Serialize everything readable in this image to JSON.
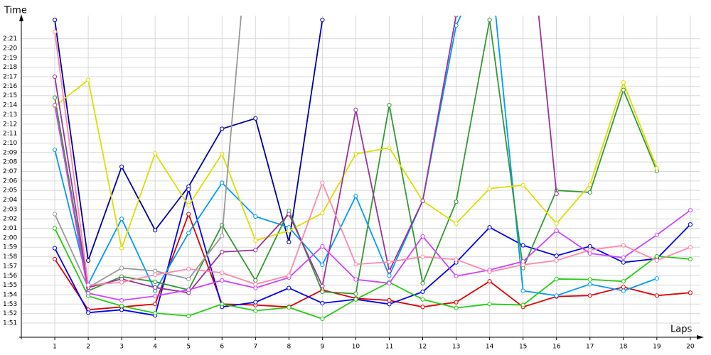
{
  "chart_data": {
    "type": "line",
    "y_label": "Time",
    "x_label": "Laps",
    "x": [
      1,
      2,
      3,
      4,
      5,
      6,
      7,
      8,
      9,
      10,
      11,
      12,
      13,
      14,
      15,
      16,
      17,
      18,
      19,
      20
    ],
    "xlim": [
      0,
      20.3
    ],
    "xticks": [
      1,
      2,
      3,
      4,
      5,
      6,
      7,
      8,
      9,
      10,
      11,
      12,
      13,
      14,
      15,
      16,
      17,
      18,
      19,
      20
    ],
    "ylim": [
      109.5,
      143
    ],
    "yticks": [
      {
        "value": 111,
        "label": "1:51"
      },
      {
        "value": 112,
        "label": "1:52"
      },
      {
        "value": 113,
        "label": "1:53"
      },
      {
        "value": 114,
        "label": "1:54"
      },
      {
        "value": 115,
        "label": "1:55"
      },
      {
        "value": 116,
        "label": "1:56"
      },
      {
        "value": 117,
        "label": "1:57"
      },
      {
        "value": 118,
        "label": "1:58"
      },
      {
        "value": 119,
        "label": "1:59"
      },
      {
        "value": 120,
        "label": "2:00"
      },
      {
        "value": 121,
        "label": "2:01"
      },
      {
        "value": 122,
        "label": "2:02"
      },
      {
        "value": 123,
        "label": "2:03"
      },
      {
        "value": 124,
        "label": "2:04"
      },
      {
        "value": 125,
        "label": "2:05"
      },
      {
        "value": 126,
        "label": "2:06"
      },
      {
        "value": 127,
        "label": "2:07"
      },
      {
        "value": 128,
        "label": "2:08"
      },
      {
        "value": 129,
        "label": "2:09"
      },
      {
        "value": 130,
        "label": "2:10"
      },
      {
        "value": 131,
        "label": "2:11"
      },
      {
        "value": 132,
        "label": "2:12"
      },
      {
        "value": 133,
        "label": "2:13"
      },
      {
        "value": 134,
        "label": "2:14"
      },
      {
        "value": 135,
        "label": "2:15"
      },
      {
        "value": 136,
        "label": "2:16"
      },
      {
        "value": 137,
        "label": "2:17"
      },
      {
        "value": 138,
        "label": "2:18"
      },
      {
        "value": 139,
        "label": "2:19"
      },
      {
        "value": 140,
        "label": "2:20"
      },
      {
        "value": 141,
        "label": "2:21"
      }
    ],
    "grid": true,
    "series": [
      {
        "color": "#e00000",
        "values": [
          117.75,
          112.4,
          112.7,
          113.0,
          122.5,
          113.0,
          112.9,
          112.7,
          114.5,
          113.6,
          113.4,
          112.7,
          113.2,
          115.4,
          112.7,
          113.8,
          113.9,
          114.8,
          113.9,
          114.2
        ]
      },
      {
        "color": "#0000a0",
        "values": [
          143.0,
          117.6,
          127.5,
          120.8,
          125.4,
          131.5,
          132.6,
          119.55,
          143.0,
          null,
          null,
          null,
          null,
          null,
          null,
          null,
          null,
          null,
          null,
          null
        ]
      },
      {
        "color": "#0000f0",
        "values": [
          118.9,
          112.1,
          112.4,
          111.8,
          125.1,
          112.7,
          113.2,
          114.7,
          113.1,
          113.5,
          113.0,
          114.3,
          117.4,
          121.1,
          119.2,
          118.1,
          119.1,
          117.4,
          117.8,
          121.4
        ]
      },
      {
        "color": "#0099ff",
        "values": [
          129.3,
          115.1,
          122.0,
          114.4,
          120.5,
          125.8,
          122.25,
          121.1,
          117.15,
          124.4,
          116.0,
          123.9,
          142.4,
          150,
          114.4,
          113.9,
          115.1,
          114.4,
          115.7,
          null
        ]
      },
      {
        "color": "#22cc11",
        "values": [
          121.0,
          113.85,
          112.8,
          112.05,
          111.75,
          113.0,
          112.3,
          112.65,
          111.45,
          113.5,
          115.3,
          113.5,
          112.6,
          113.0,
          112.9,
          115.65,
          115.6,
          115.4,
          118.05,
          117.75
        ]
      },
      {
        "color": "#339933",
        "values": [
          134.8,
          114.4,
          115.9,
          115.35,
          114.5,
          121.35,
          115.5,
          122.85,
          114.3,
          114.1,
          134.0,
          115.2,
          123.8,
          143.0,
          116.8,
          125.0,
          124.8,
          135.6,
          127.05,
          null
        ]
      },
      {
        "color": "#dddd00",
        "values": [
          133.9,
          136.65,
          118.9,
          128.9,
          123.4,
          128.85,
          119.7,
          120.75,
          122.6,
          128.85,
          129.5,
          123.9,
          121.5,
          125.2,
          125.55,
          121.5,
          125.6,
          136.4,
          127.35,
          null
        ]
      },
      {
        "color": "#999999",
        "values": [
          122.5,
          114.75,
          116.8,
          116.5,
          115.65,
          120.2,
          161,
          null,
          null,
          null,
          null,
          null,
          null,
          null,
          null,
          null,
          null,
          null,
          null,
          null
        ]
      },
      {
        "color": "#993399",
        "values": [
          137.0,
          114.75,
          115.65,
          114.75,
          114.2,
          118.5,
          118.7,
          122.5,
          114.9,
          133.5,
          116.5,
          123.9,
          143.5,
          160,
          160,
          124.65,
          null,
          null,
          null,
          null
        ]
      },
      {
        "color": "#cc44ff",
        "values": [
          134.0,
          114.15,
          113.4,
          113.85,
          114.5,
          115.5,
          114.7,
          115.8,
          119.1,
          115.6,
          115.2,
          120.15,
          115.95,
          116.6,
          117.5,
          120.75,
          118.35,
          117.9,
          120.3,
          122.9
        ]
      },
      {
        "color": "#ff88aa",
        "values": [
          141.75,
          115.0,
          115.3,
          116.1,
          116.7,
          116.3,
          115.1,
          116.0,
          125.8,
          117.2,
          117.45,
          118.0,
          117.7,
          116.4,
          117.15,
          117.6,
          118.7,
          119.2,
          117.6,
          119.0
        ]
      }
    ]
  }
}
